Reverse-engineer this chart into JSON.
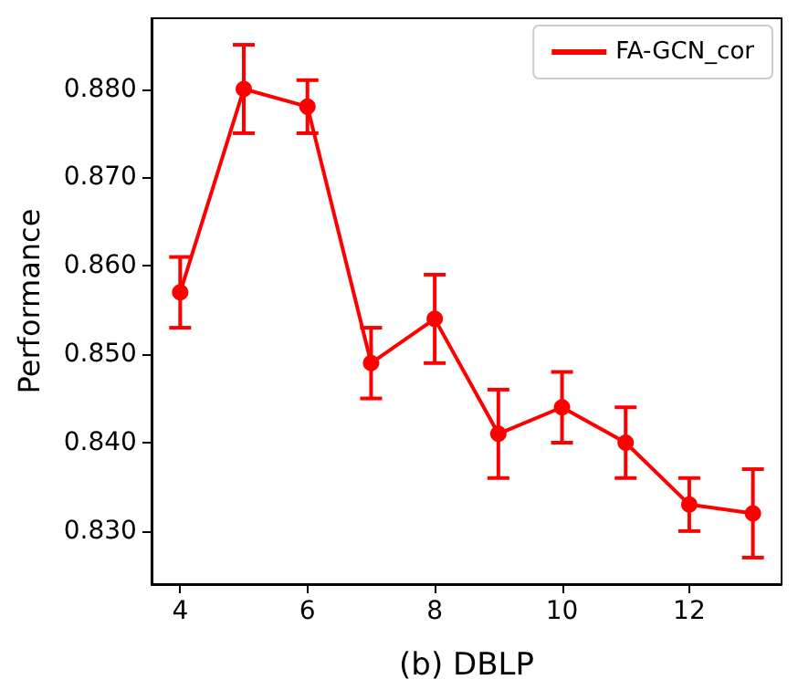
{
  "chart_data": {
    "type": "line",
    "xlabel": "(b) DBLP",
    "ylabel": "Performance",
    "x": [
      4,
      5,
      6,
      7,
      8,
      9,
      10,
      11,
      12,
      13
    ],
    "series": [
      {
        "name": "FA-GCN_cor",
        "color": "#ff0000",
        "values": [
          0.857,
          0.88,
          0.878,
          0.849,
          0.854,
          0.841,
          0.844,
          0.84,
          0.833,
          0.832
        ],
        "errors": [
          [
            0.853,
            0.861
          ],
          [
            0.875,
            0.885
          ],
          [
            0.875,
            0.881
          ],
          [
            0.845,
            0.853
          ],
          [
            0.849,
            0.859
          ],
          [
            0.836,
            0.846
          ],
          [
            0.84,
            0.848
          ],
          [
            0.836,
            0.844
          ],
          [
            0.83,
            0.836
          ],
          [
            0.827,
            0.837
          ]
        ]
      }
    ],
    "xlim": [
      3.55,
      13.45
    ],
    "xticks": [
      4,
      6,
      8,
      10,
      12
    ],
    "ylim": [
      0.824,
      0.888
    ],
    "yticks": [
      {
        "value": 0.83,
        "label": "0.830"
      },
      {
        "value": 0.84,
        "label": "0.840"
      },
      {
        "value": 0.85,
        "label": "0.850"
      },
      {
        "value": 0.86,
        "label": "0.860"
      },
      {
        "value": 0.87,
        "label": "0.870"
      },
      {
        "value": 0.88,
        "label": "0.880"
      }
    ],
    "legend": "top right",
    "marker": "circle",
    "line_style": "solid",
    "grid": false
  }
}
